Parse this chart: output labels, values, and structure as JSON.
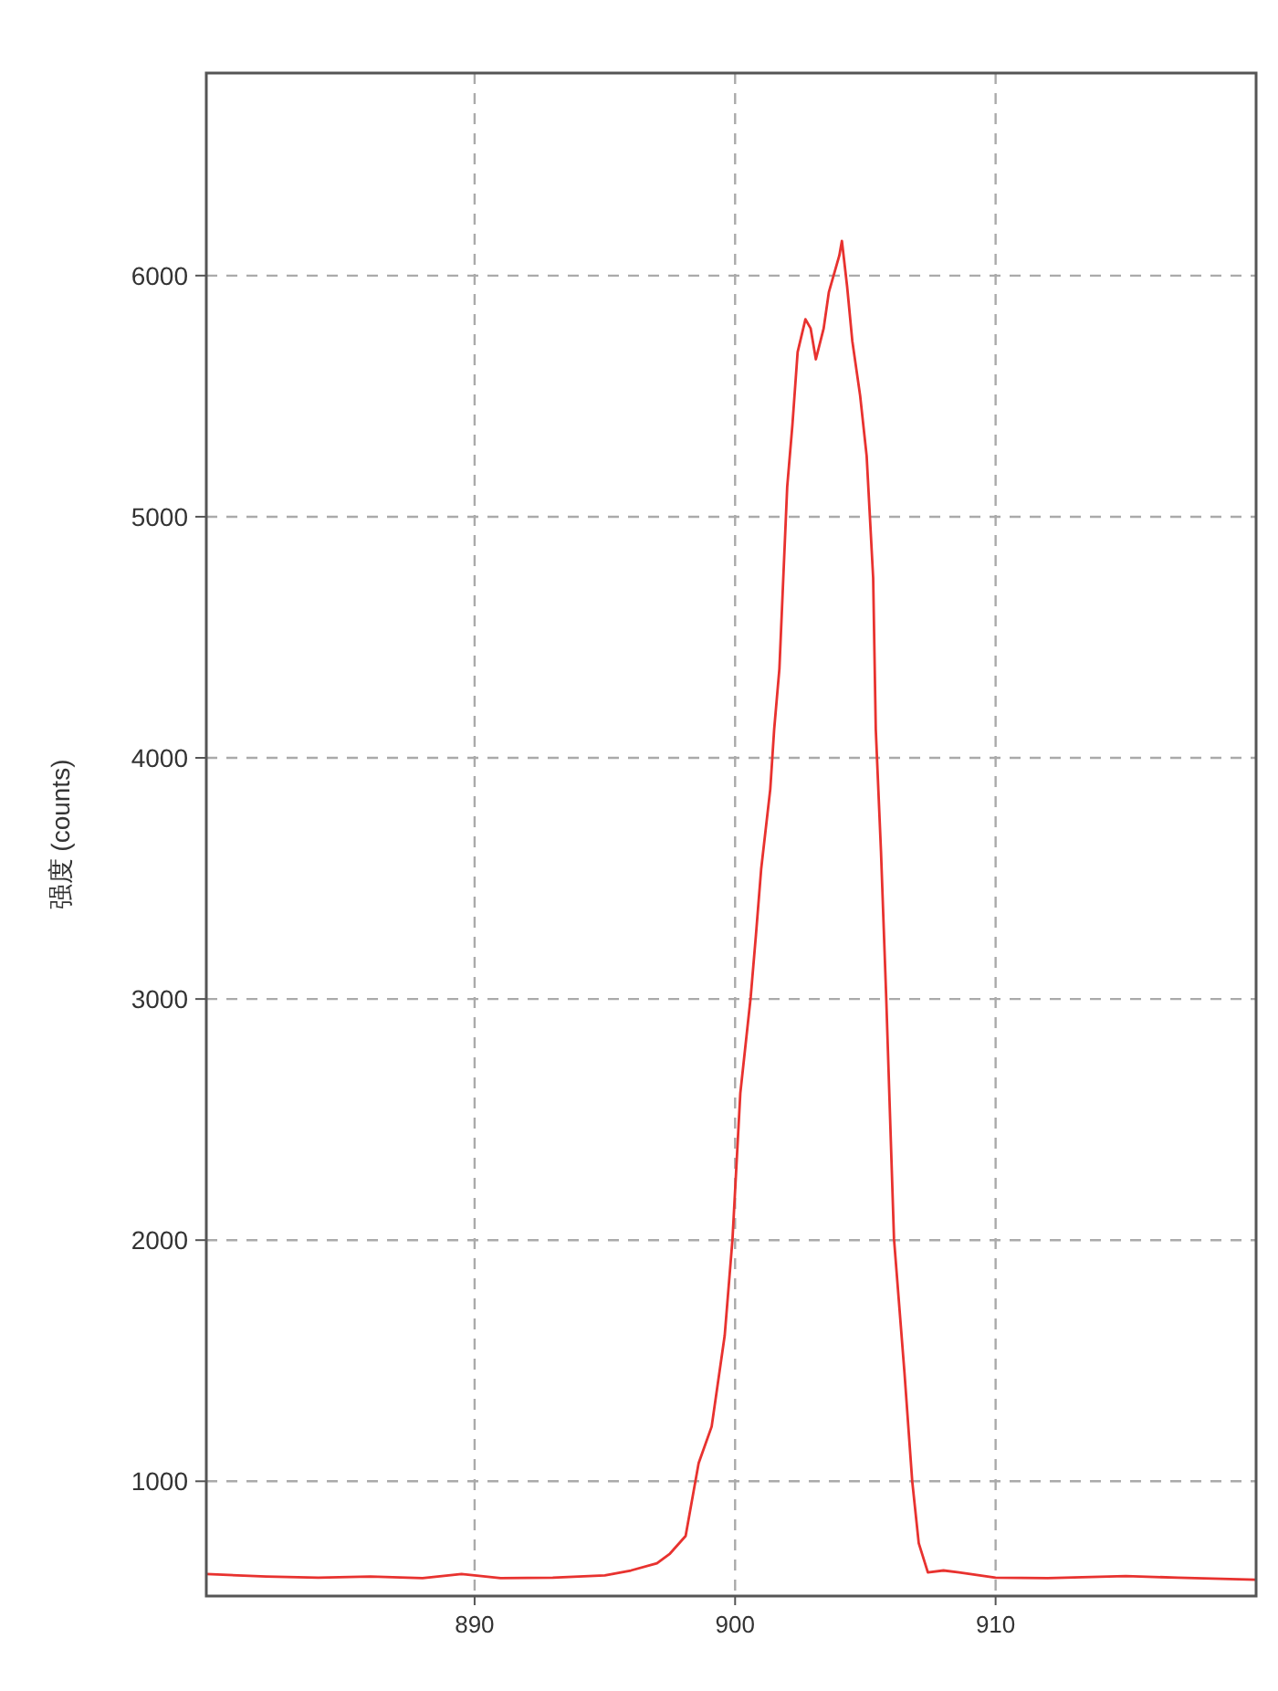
{
  "chart_data": {
    "type": "line",
    "ylabel": "强度 (counts)",
    "xlim": [
      879.7,
      920
    ],
    "ylim": [
      524,
      6840
    ],
    "xticks": [
      890,
      900,
      910
    ],
    "yticks": [
      1000,
      2000,
      3000,
      4000,
      5000,
      6000
    ],
    "grid": true,
    "line_style": "solid",
    "marker": "none",
    "series": [
      {
        "color": "#e8322f",
        "x": [
          879.7,
          882,
          884,
          886,
          888,
          889.5,
          891,
          893,
          895,
          896,
          897,
          897.5,
          898.1,
          898.6,
          899.1,
          899.6,
          899.9,
          900.2,
          900.6,
          900.8,
          901,
          901.35,
          901.5,
          901.7,
          902,
          902.2,
          902.4,
          902.7,
          902.9,
          903.1,
          903.4,
          903.6,
          904,
          904.1,
          904.3,
          904.5,
          904.8,
          905.05,
          905.3,
          905.4,
          905.6,
          905.8,
          906.1,
          906.5,
          906.8,
          907.05,
          907.4,
          908,
          908.6,
          910,
          912,
          915,
          917,
          920
        ],
        "values": [
          615,
          605,
          600,
          605,
          598,
          615,
          598,
          600,
          610,
          630,
          660,
          700,
          773,
          1075,
          1227,
          1604,
          2004,
          2609,
          3009,
          3266,
          3538,
          3870,
          4119,
          4369,
          5124,
          5381,
          5683,
          5819,
          5781,
          5653,
          5781,
          5932,
          6083,
          6144,
          5955,
          5728,
          5502,
          5252,
          4746,
          4119,
          3613,
          3009,
          2005,
          1453,
          1000,
          743,
          622,
          630,
          622,
          600,
          598,
          607,
          600,
          592
        ]
      }
    ]
  }
}
